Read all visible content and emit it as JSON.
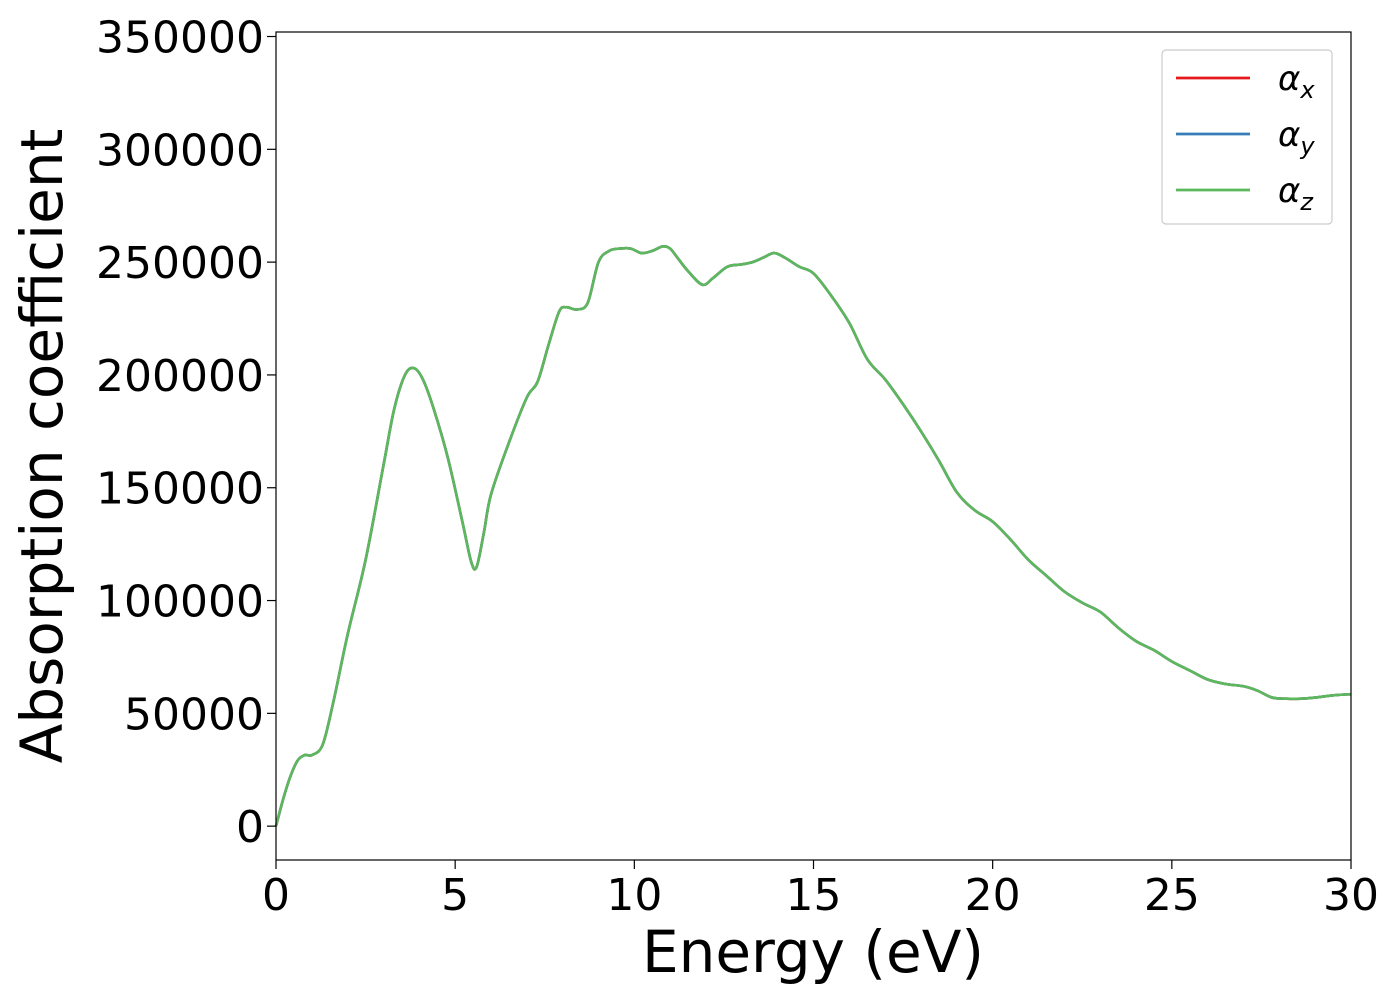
{
  "chart_data": {
    "type": "line",
    "title": "",
    "xlabel": "Energy (eV)",
    "ylabel": "Absorption coefficient",
    "xlim": [
      0,
      30
    ],
    "ylim": [
      -15000,
      352000
    ],
    "xticks": [
      0,
      5,
      10,
      15,
      20,
      25,
      30
    ],
    "yticks": [
      0,
      50000,
      100000,
      150000,
      200000,
      250000,
      300000,
      350000
    ],
    "xtick_labels": [
      "0",
      "5",
      "10",
      "15",
      "20",
      "25",
      "30"
    ],
    "ytick_labels": [
      "0",
      "50000",
      "100000",
      "150000",
      "200000",
      "250000",
      "300000",
      "350000"
    ],
    "grid": false,
    "legend_position": "top-right",
    "x": [
      0,
      0.2,
      0.4,
      0.6,
      0.8,
      1.0,
      1.3,
      1.6,
      2.0,
      2.5,
      3.0,
      3.3,
      3.6,
      3.85,
      4.1,
      4.4,
      4.8,
      5.2,
      5.45,
      5.6,
      5.8,
      6.0,
      6.5,
      7.0,
      7.3,
      7.6,
      7.9,
      8.1,
      8.4,
      8.7,
      9.0,
      9.3,
      9.6,
      9.9,
      10.2,
      10.5,
      10.8,
      11.0,
      11.2,
      11.5,
      11.9,
      12.2,
      12.6,
      13.0,
      13.3,
      13.6,
      13.9,
      14.2,
      14.6,
      15.0,
      15.5,
      16.0,
      16.5,
      17.0,
      17.5,
      18.0,
      18.5,
      19.0,
      19.5,
      20.0,
      20.5,
      21.0,
      21.5,
      22.0,
      22.5,
      23.0,
      23.5,
      24.0,
      24.5,
      25.0,
      25.5,
      26.0,
      26.5,
      27.0,
      27.4,
      27.8,
      28.2,
      28.6,
      29.0,
      29.5,
      30.0
    ],
    "series": [
      {
        "name": "α_x",
        "label_base": "α",
        "label_sub": "x",
        "color": "#e41a1c",
        "y": [
          0,
          12000,
          22000,
          29000,
          31500,
          31500,
          36000,
          55000,
          85000,
          118000,
          160000,
          185000,
          200000,
          203000,
          198000,
          185000,
          163000,
          135000,
          117000,
          115000,
          130000,
          147000,
          170000,
          190000,
          197000,
          213000,
          228000,
          230000,
          229000,
          232000,
          250000,
          255000,
          256000,
          256000,
          254000,
          255000,
          257000,
          256000,
          252000,
          246000,
          240000,
          243000,
          248000,
          249000,
          250000,
          252000,
          254000,
          252000,
          248000,
          245000,
          235000,
          223000,
          207000,
          198000,
          187000,
          175000,
          162000,
          148000,
          140000,
          135000,
          127000,
          118000,
          111000,
          104000,
          99000,
          95000,
          88000,
          82000,
          78000,
          73000,
          69000,
          65000,
          63000,
          62000,
          60000,
          57000,
          56500,
          56500,
          57000,
          58000,
          58500
        ]
      },
      {
        "name": "α_y",
        "label_base": "α",
        "label_sub": "y",
        "color": "#377eb8",
        "y": [
          0,
          12000,
          22000,
          29000,
          31500,
          31500,
          36000,
          55000,
          85000,
          118000,
          160000,
          185000,
          200000,
          203000,
          198000,
          185000,
          163000,
          135000,
          117000,
          115000,
          130000,
          147000,
          170000,
          190000,
          197000,
          213000,
          228000,
          230000,
          229000,
          232000,
          250000,
          255000,
          256000,
          256000,
          254000,
          255000,
          257000,
          256000,
          252000,
          246000,
          240000,
          243000,
          248000,
          249000,
          250000,
          252000,
          254000,
          252000,
          248000,
          245000,
          235000,
          223000,
          207000,
          198000,
          187000,
          175000,
          162000,
          148000,
          140000,
          135000,
          127000,
          118000,
          111000,
          104000,
          99000,
          95000,
          88000,
          82000,
          78000,
          73000,
          69000,
          65000,
          63000,
          62000,
          60000,
          57000,
          56500,
          56500,
          57000,
          58000,
          58500
        ]
      },
      {
        "name": "α_z",
        "label_base": "α",
        "label_sub": "z",
        "color": "#5cb85c",
        "y": [
          0,
          12000,
          22000,
          29000,
          31500,
          31500,
          36000,
          55000,
          85000,
          118000,
          160000,
          185000,
          200000,
          203000,
          198000,
          185000,
          163000,
          135000,
          117000,
          115000,
          130000,
          147000,
          170000,
          190000,
          197000,
          213000,
          228000,
          230000,
          229000,
          232000,
          250000,
          255000,
          256000,
          256000,
          254000,
          255000,
          257000,
          256000,
          252000,
          246000,
          240000,
          243000,
          248000,
          249000,
          250000,
          252000,
          254000,
          252000,
          248000,
          245000,
          235000,
          223000,
          207000,
          198000,
          187000,
          175000,
          162000,
          148000,
          140000,
          135000,
          127000,
          118000,
          111000,
          104000,
          99000,
          95000,
          88000,
          82000,
          78000,
          73000,
          69000,
          65000,
          63000,
          62000,
          60000,
          57000,
          56500,
          56500,
          57000,
          58000,
          58500
        ]
      }
    ]
  }
}
